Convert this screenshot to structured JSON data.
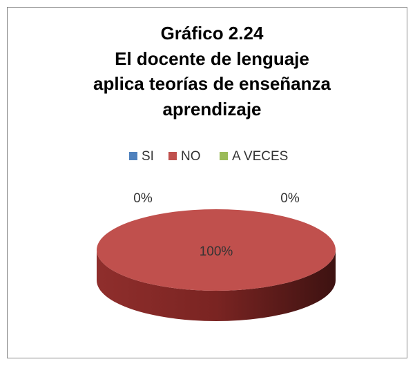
{
  "chart_data": {
    "type": "pie",
    "title": [
      "Gráfico 2.24",
      "El docente de lenguaje",
      "aplica teorías de enseñanza",
      "aprendizaje"
    ],
    "categories": [
      "SI",
      "NO",
      "A VECES"
    ],
    "values": [
      0,
      100,
      0
    ],
    "value_labels": [
      "0%",
      "100%",
      "0%"
    ],
    "colors": [
      "#4f81bd",
      "#c0504d",
      "#9bbb59"
    ],
    "legend": "top"
  }
}
